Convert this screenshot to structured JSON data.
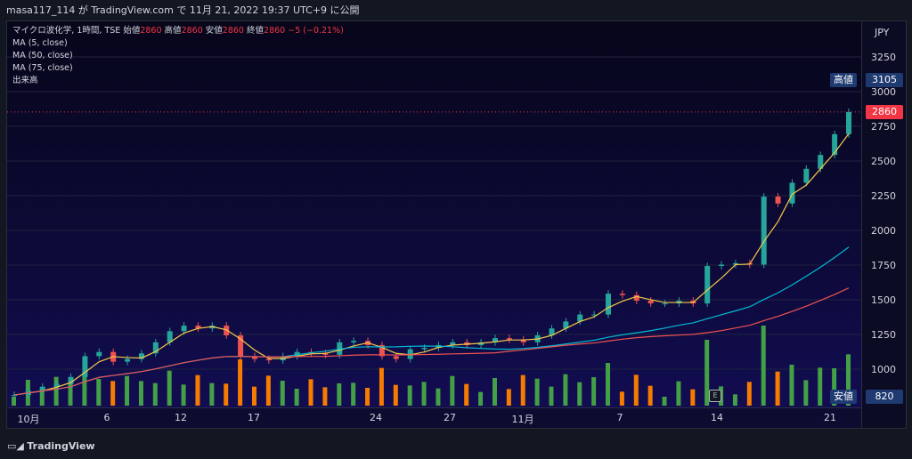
{
  "header": {
    "text": "masa117_114 が TradingView.com で 11月 21, 2022 19:37 UTC+9 に公開"
  },
  "legend": {
    "symbol": "マイクロ波化学, 1時間, TSE",
    "open_label": "始値",
    "open": "2860",
    "high_label": "高値",
    "high": "2860",
    "low_label": "安値",
    "low": "2860",
    "close_label": "終値",
    "close": "2860",
    "change": "−5 (−0.21%)",
    "ma5": "MA (5, close)",
    "ma50": "MA (50, close)",
    "ma75": "MA (75, close)",
    "volume": "出来高"
  },
  "price_axis": {
    "unit": "JPY",
    "ticks": [
      "3250",
      "3000",
      "2750",
      "2500",
      "2250",
      "2000",
      "1750",
      "1500",
      "1250",
      "1000"
    ],
    "high_tag_label": "高値",
    "high_tag_value": "3105",
    "last_value": "2860",
    "low_tag_label": "安値",
    "low_tag_value": "820"
  },
  "time_axis": [
    "10月",
    "6",
    "12",
    "17",
    "24",
    "27",
    "11月",
    "7",
    "14",
    "21"
  ],
  "event_badge": "E",
  "brand": "TradingView",
  "colors": {
    "up": "#26a69a",
    "down": "#ef5350",
    "ma5": "#f7c948",
    "ma50": "#00bcd4",
    "ma75": "#ef5350",
    "vol_up": "#43a047",
    "vol_down": "#f57c00",
    "last": "#f23645",
    "tag": "#1e3a70"
  },
  "chart_data": {
    "type": "candlestick",
    "unit": "JPY",
    "series_close": [
      820,
      850,
      880,
      900,
      950,
      1100,
      1130,
      1060,
      1080,
      1120,
      1200,
      1280,
      1320,
      1300,
      1320,
      1250,
      1100,
      1080,
      1070,
      1100,
      1130,
      1120,
      1110,
      1200,
      1210,
      1180,
      1100,
      1080,
      1150,
      1160,
      1180,
      1200,
      1180,
      1200,
      1230,
      1220,
      1200,
      1250,
      1300,
      1350,
      1400,
      1400,
      1550,
      1540,
      1500,
      1480,
      1480,
      1500,
      1480,
      1750,
      1760,
      1770,
      1760,
      2250,
      2200,
      2350,
      2450,
      2550,
      2700,
      2860
    ],
    "volume_note": "Volume bars shown at bottom"
  }
}
